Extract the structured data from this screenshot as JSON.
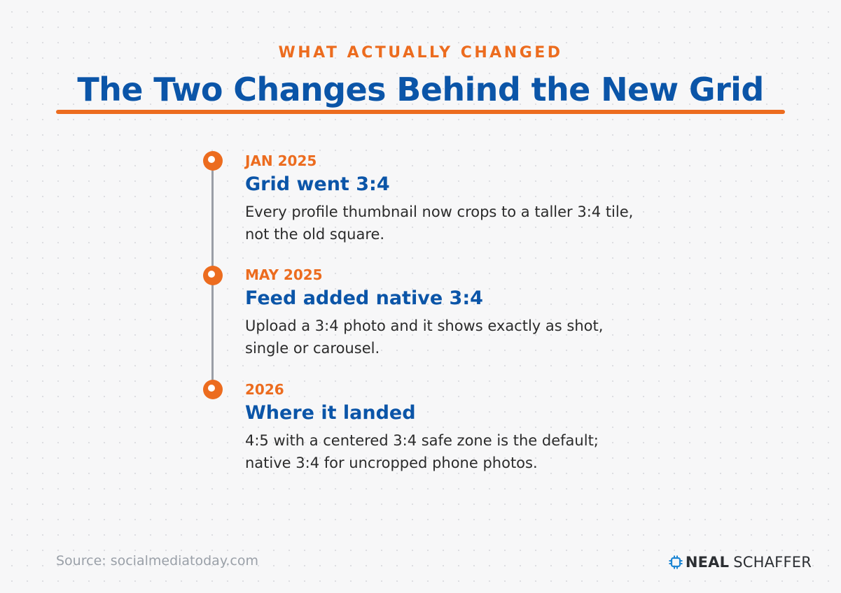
{
  "colors": {
    "accent_orange": "#ec6c1f",
    "title_blue": "#0b55a8",
    "timeline_gray": "#9a9ea6",
    "text_dark": "#2b2b2b",
    "source_gray": "#9aa0a8"
  },
  "header": {
    "eyebrow": "WHAT ACTUALLY CHANGED",
    "title": "The Two Changes Behind the New Grid"
  },
  "timeline": {
    "events": [
      {
        "date": "JAN 2025",
        "title": "Grid went 3:4",
        "description": "Every profile thumbnail now crops to a taller 3:4 tile, not the old square."
      },
      {
        "date": "MAY 2025",
        "title": "Feed added native 3:4",
        "description": "Upload a 3:4 photo and it shows exactly as shot, single or carousel."
      },
      {
        "date": "2026",
        "title": "Where it landed",
        "description": "4:5 with a centered 3:4 safe zone is the default; native 3:4 for uncropped phone photos."
      }
    ]
  },
  "footer": {
    "source": "Source: socialmediatoday.com",
    "logo_first": "NEAL",
    "logo_last": "SCHAFFER",
    "logo_icon": "brand-chip-icon"
  }
}
